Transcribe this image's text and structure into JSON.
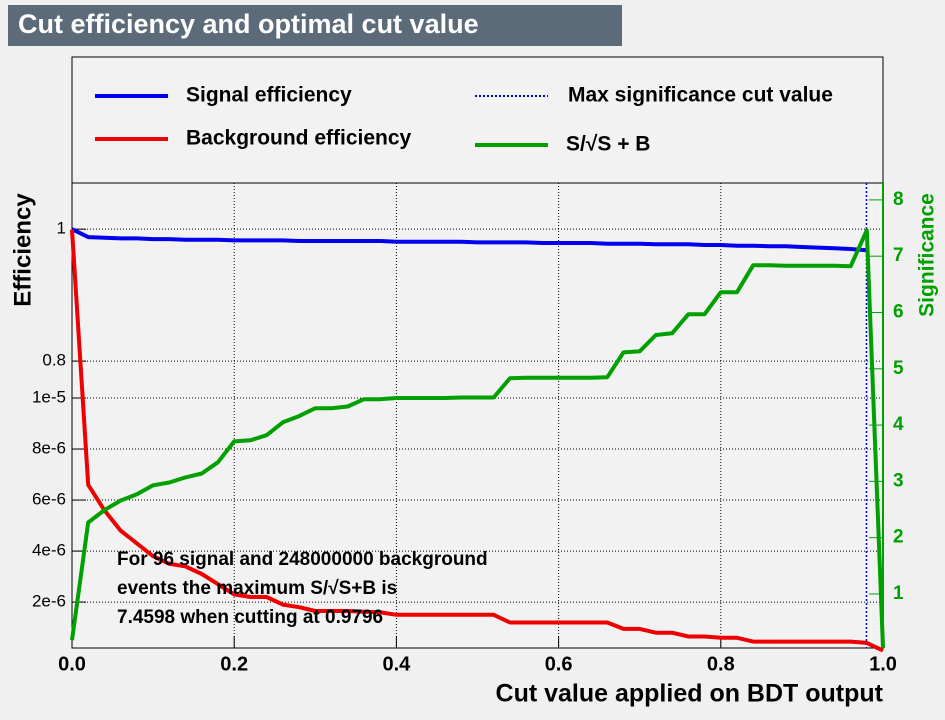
{
  "chart_data": {
    "type": "line",
    "title": "Cut efficiency and optimal cut value",
    "x_label": "Cut value applied on BDT output",
    "y_label": "Efficiency",
    "y2_label": "Significance",
    "annotation": [
      "For 96 signal and 248000000 background",
      "events the maximum S/√S+B is",
      "7.4598 when cutting at 0.9796"
    ],
    "xlim": [
      0,
      1
    ],
    "xticks": [
      {
        "value": 0,
        "label": "0.0"
      },
      0.2,
      0.4,
      0.6,
      0.8,
      {
        "value": 1,
        "label": "1.0"
      }
    ],
    "ylim": [
      0.365,
      1.07
    ],
    "yticks": [
      0.8,
      1
    ],
    "y3lim": [
      2e-07,
      1.843e-05
    ],
    "y3ticks": [
      {
        "value": 2e-06,
        "label": "2e-6"
      },
      {
        "value": 4e-06,
        "label": "4e-6"
      },
      {
        "value": 6e-06,
        "label": "6e-6"
      },
      {
        "value": 8e-06,
        "label": "8e-6"
      },
      {
        "value": 1e-05,
        "label": "1e-5"
      }
    ],
    "y2lim": [
      0.04,
      8.3
    ],
    "y2ticks": [
      1,
      2,
      3,
      4,
      5,
      6,
      7,
      8
    ],
    "grid": true,
    "x": [
      0,
      0.02,
      0.04,
      0.06,
      0.08,
      0.1,
      0.12,
      0.14,
      0.16,
      0.18,
      0.2,
      0.22,
      0.24,
      0.26,
      0.28,
      0.3,
      0.32,
      0.34,
      0.36,
      0.38,
      0.4,
      0.42,
      0.44,
      0.46,
      0.48,
      0.5,
      0.52,
      0.54,
      0.56,
      0.58,
      0.6,
      0.62,
      0.64,
      0.66,
      0.68,
      0.7,
      0.72,
      0.74,
      0.76,
      0.78,
      0.8,
      0.82,
      0.84,
      0.86,
      0.88,
      0.9,
      0.92,
      0.94,
      0.96,
      0.98,
      1
    ],
    "series": [
      {
        "name": "Signal efficiency",
        "color": "#0000ee",
        "axis": "y",
        "values": [
          1.0,
          0.988,
          0.987,
          0.986,
          0.986,
          0.985,
          0.985,
          0.984,
          0.984,
          0.984,
          0.983,
          0.983,
          0.983,
          0.983,
          0.982,
          0.982,
          0.982,
          0.982,
          0.982,
          0.982,
          0.981,
          0.981,
          0.981,
          0.981,
          0.981,
          0.98,
          0.98,
          0.98,
          0.98,
          0.979,
          0.979,
          0.979,
          0.979,
          0.978,
          0.978,
          0.978,
          0.977,
          0.977,
          0.977,
          0.976,
          0.976,
          0.975,
          0.975,
          0.974,
          0.974,
          0.973,
          0.972,
          0.971,
          0.97,
          0.968,
          null
        ]
      },
      {
        "name": "Background efficiency",
        "color": "#ee0000",
        "axis": "y3",
        "values": [
          1.66e-05,
          6.6e-06,
          5.6e-06,
          4.8e-06,
          4.3e-06,
          3.8e-06,
          3.5e-06,
          3.4e-06,
          3.1e-06,
          2.7e-06,
          2.3e-06,
          2.2e-06,
          2.2e-06,
          1.9e-06,
          1.8e-06,
          1.65e-06,
          1.65e-06,
          1.65e-06,
          1.62e-06,
          1.6e-06,
          1.5e-06,
          1.5e-06,
          1.5e-06,
          1.5e-06,
          1.5e-06,
          1.5e-06,
          1.5e-06,
          1.2e-06,
          1.2e-06,
          1.2e-06,
          1.2e-06,
          1.2e-06,
          1.2e-06,
          1.2e-06,
          9.5e-07,
          9.5e-07,
          8e-07,
          8e-07,
          6.5e-07,
          6.5e-07,
          6e-07,
          6e-07,
          4.5e-07,
          4.5e-07,
          4.5e-07,
          4.5e-07,
          4.5e-07,
          4.5e-07,
          4.5e-07,
          4e-07,
          1e-07
        ]
      },
      {
        "name": "S/√S + B",
        "color": "#00a000",
        "axis": "y2",
        "values": [
          0.18,
          2.27,
          2.49,
          2.66,
          2.77,
          2.93,
          2.98,
          3.07,
          3.14,
          3.34,
          3.71,
          3.73,
          3.82,
          4.05,
          4.16,
          4.3,
          4.3,
          4.33,
          4.46,
          4.46,
          4.48,
          4.48,
          4.48,
          4.48,
          4.49,
          4.49,
          4.49,
          4.83,
          4.84,
          4.84,
          4.84,
          4.84,
          4.84,
          4.85,
          5.29,
          5.31,
          5.6,
          5.63,
          5.97,
          5.97,
          6.36,
          6.36,
          6.84,
          6.84,
          6.83,
          6.83,
          6.83,
          6.83,
          6.82,
          7.46,
          0.04
        ]
      }
    ],
    "cut_line": {
      "name": "Max significance cut value",
      "color": "#0000ee",
      "x": 0.9796
    }
  }
}
